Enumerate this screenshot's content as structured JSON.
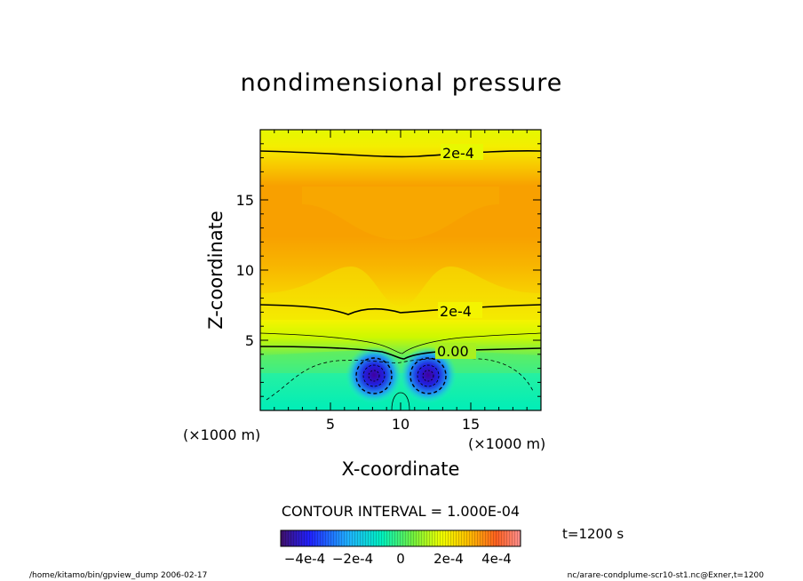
{
  "title": "nondimensional pressure",
  "chart_data": {
    "type": "heatmap",
    "title": "nondimensional pressure",
    "xlabel": "X-coordinate",
    "ylabel": "Z-coordinate",
    "x_unit": "(×1000 m)",
    "y_unit": "(×1000 m)",
    "xlim": [
      0,
      20
    ],
    "ylim": [
      0,
      20
    ],
    "x_ticks": [
      "5",
      "10",
      "15"
    ],
    "y_ticks": [
      "5",
      "10",
      "15"
    ],
    "contour_labels": [
      "2e-4",
      "2e-4",
      "0.00"
    ],
    "contour_interval_text": "CONTOUR INTERVAL = 1.000E-04",
    "colorbar_labels": [
      "−4e-4",
      "−2e-4",
      "0",
      "2e-4",
      "4e-4"
    ],
    "colorbar_range": [
      -0.0005,
      0.0005
    ],
    "time_text": "t=1200 s",
    "colors": {
      "min": "#3a0070",
      "mid": "#00f0b0",
      "yellow": "#f0ff00",
      "orange": "#ff9a00",
      "max": "#ff4040"
    }
  },
  "footer": {
    "left": "/home/kitamo/bin/gpview_dump  2006-02-17",
    "right": "nc/arare-condplume-scr10-st1.nc@Exner,t=1200"
  }
}
